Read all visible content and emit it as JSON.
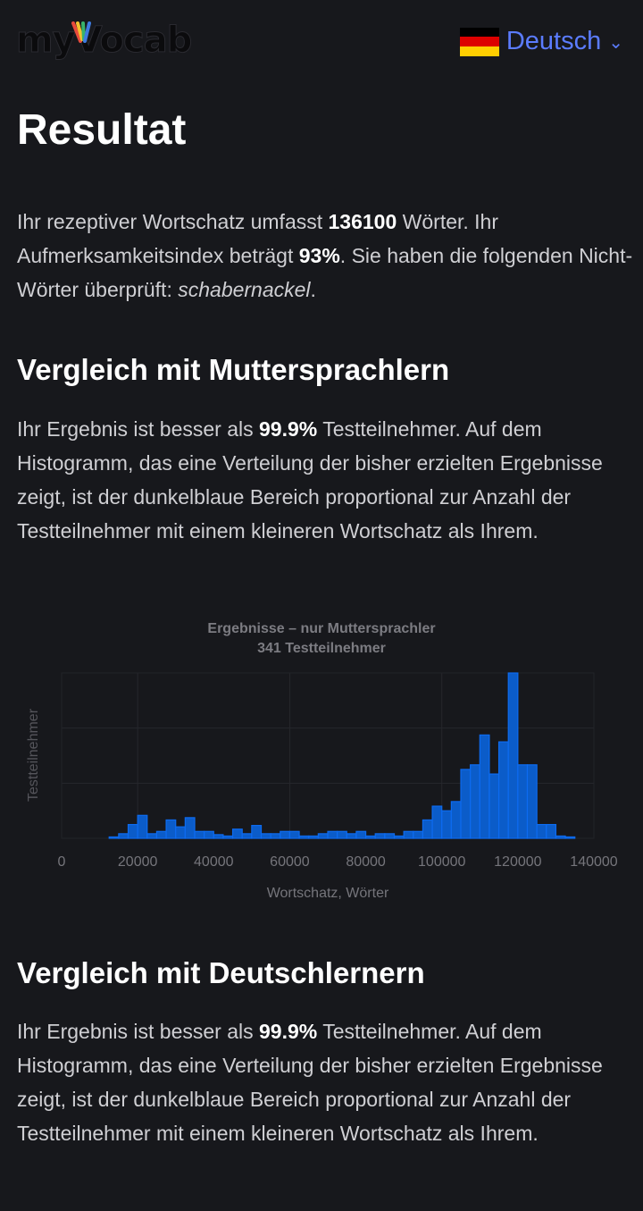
{
  "header": {
    "logo_text": "myVocab",
    "language_label": "Deutsch",
    "flag_colors": [
      "#000000",
      "#dd0000",
      "#ffce00"
    ],
    "accent_color": "#5b7cff"
  },
  "page_title": "Resultat",
  "summary": {
    "p1": "Ihr rezeptiver Wortschatz umfasst ",
    "vocab": "136100",
    "p2": " Wörter. Ihr Aufmerksamkeitsindex beträgt ",
    "attention": "93%",
    "p3": ". Sie haben die folgenden Nicht-Wörter überprüft: ",
    "nonwords": "schabernackel",
    "p4": "."
  },
  "native": {
    "heading": "Vergleich mit Muttersprachlern",
    "p1": "Ihr Ergebnis ist besser als ",
    "percent": "99.9%",
    "p2": " Testteilnehmer. Auf dem Histogramm, das eine Verteilung der bisher erzielten Ergebnisse zeigt, ist der dunkelblaue Bereich proportional zur Anzahl der Testteilnehmer mit einem kleineren Wortschatz als Ihrem."
  },
  "learners": {
    "heading": "Vergleich mit Deutschlernern",
    "p1": "Ihr Ergebnis ist besser als ",
    "percent": "99.9%",
    "p2": " Testteilnehmer. Auf dem Histogramm, das eine Verteilung der bisher erzielten Ergebnisse zeigt, ist der dunkelblaue Bereich proportional zur Anzahl der Testteilnehmer mit einem kleineren Wortschatz als Ihrem."
  },
  "chart_data": {
    "type": "bar",
    "title": "Ergebnisse – nur Muttersprachler",
    "subtitle": "341 Testteilnehmer",
    "xlabel": "Wortschatz, Wörter",
    "ylabel": "Testteilnehmer",
    "xlim": [
      0,
      140000
    ],
    "ylim": [
      0,
      36
    ],
    "bin_width": 2500,
    "x_ticks": [
      0,
      20000,
      40000,
      60000,
      80000,
      100000,
      120000,
      140000
    ],
    "bins": [
      [
        12500,
        0.3
      ],
      [
        15000,
        1
      ],
      [
        17500,
        3
      ],
      [
        20000,
        5
      ],
      [
        22500,
        1
      ],
      [
        25000,
        1.5
      ],
      [
        27500,
        4
      ],
      [
        30000,
        2.5
      ],
      [
        32500,
        4.5
      ],
      [
        35000,
        1.5
      ],
      [
        37500,
        1.5
      ],
      [
        40000,
        0.8
      ],
      [
        42500,
        0.5
      ],
      [
        45000,
        2
      ],
      [
        47500,
        1
      ],
      [
        50000,
        2.8
      ],
      [
        52500,
        1
      ],
      [
        55000,
        1
      ],
      [
        57500,
        1.5
      ],
      [
        60000,
        1.5
      ],
      [
        62500,
        0.5
      ],
      [
        65000,
        0.5
      ],
      [
        67500,
        1
      ],
      [
        70000,
        1.5
      ],
      [
        72500,
        1.5
      ],
      [
        75000,
        1
      ],
      [
        77500,
        1.5
      ],
      [
        80000,
        0.5
      ],
      [
        82500,
        1
      ],
      [
        85000,
        1
      ],
      [
        87500,
        0.5
      ],
      [
        90000,
        1.5
      ],
      [
        92500,
        1.5
      ],
      [
        95000,
        4
      ],
      [
        97500,
        7
      ],
      [
        100000,
        6
      ],
      [
        102500,
        8
      ],
      [
        105000,
        15
      ],
      [
        107500,
        16
      ],
      [
        110000,
        22.5
      ],
      [
        112500,
        14
      ],
      [
        115000,
        21
      ],
      [
        117500,
        36
      ],
      [
        120000,
        16
      ],
      [
        122500,
        16
      ],
      [
        125000,
        3
      ],
      [
        127500,
        3
      ],
      [
        130000,
        0.5
      ],
      [
        132500,
        0.3
      ]
    ],
    "bar_color": "#0b5cc9",
    "edge_color": "#0d6bf0",
    "grid": true
  }
}
